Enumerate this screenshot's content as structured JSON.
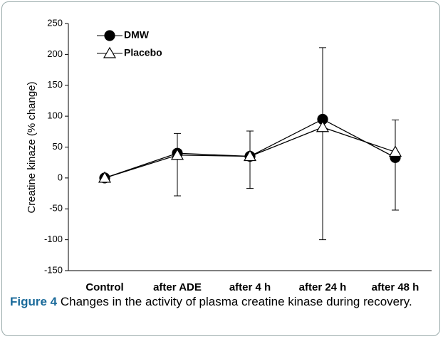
{
  "chart_data": {
    "type": "line",
    "ylabel": "Creatine kinaze (% change)",
    "categories": [
      "Control",
      "after ADE",
      "after 4 h",
      "after 24 h",
      "after 48 h"
    ],
    "series": [
      {
        "name": "DMW",
        "color": "#000000",
        "marker": "circle",
        "marker_fill": "#000000",
        "error_direction": "up",
        "values": [
          0,
          40,
          35,
          95,
          33
        ],
        "errors": [
          null,
          32,
          41,
          116,
          61
        ]
      },
      {
        "name": "Placebo",
        "color": "#000000",
        "marker": "triangle",
        "marker_fill": "#ffffff",
        "error_direction": "down",
        "values": [
          0,
          37,
          35,
          82,
          42
        ],
        "errors": [
          null,
          66,
          52,
          182,
          94
        ]
      }
    ],
    "ylim": [
      -150,
      250
    ],
    "yticks": [
      -150,
      -100,
      -50,
      0,
      50,
      100,
      150,
      200,
      250
    ],
    "legend": "top-left",
    "grid": false
  },
  "caption": {
    "label": "Figure 4",
    "text": "Changes in the activity of plasma creatine kinase during recovery."
  }
}
